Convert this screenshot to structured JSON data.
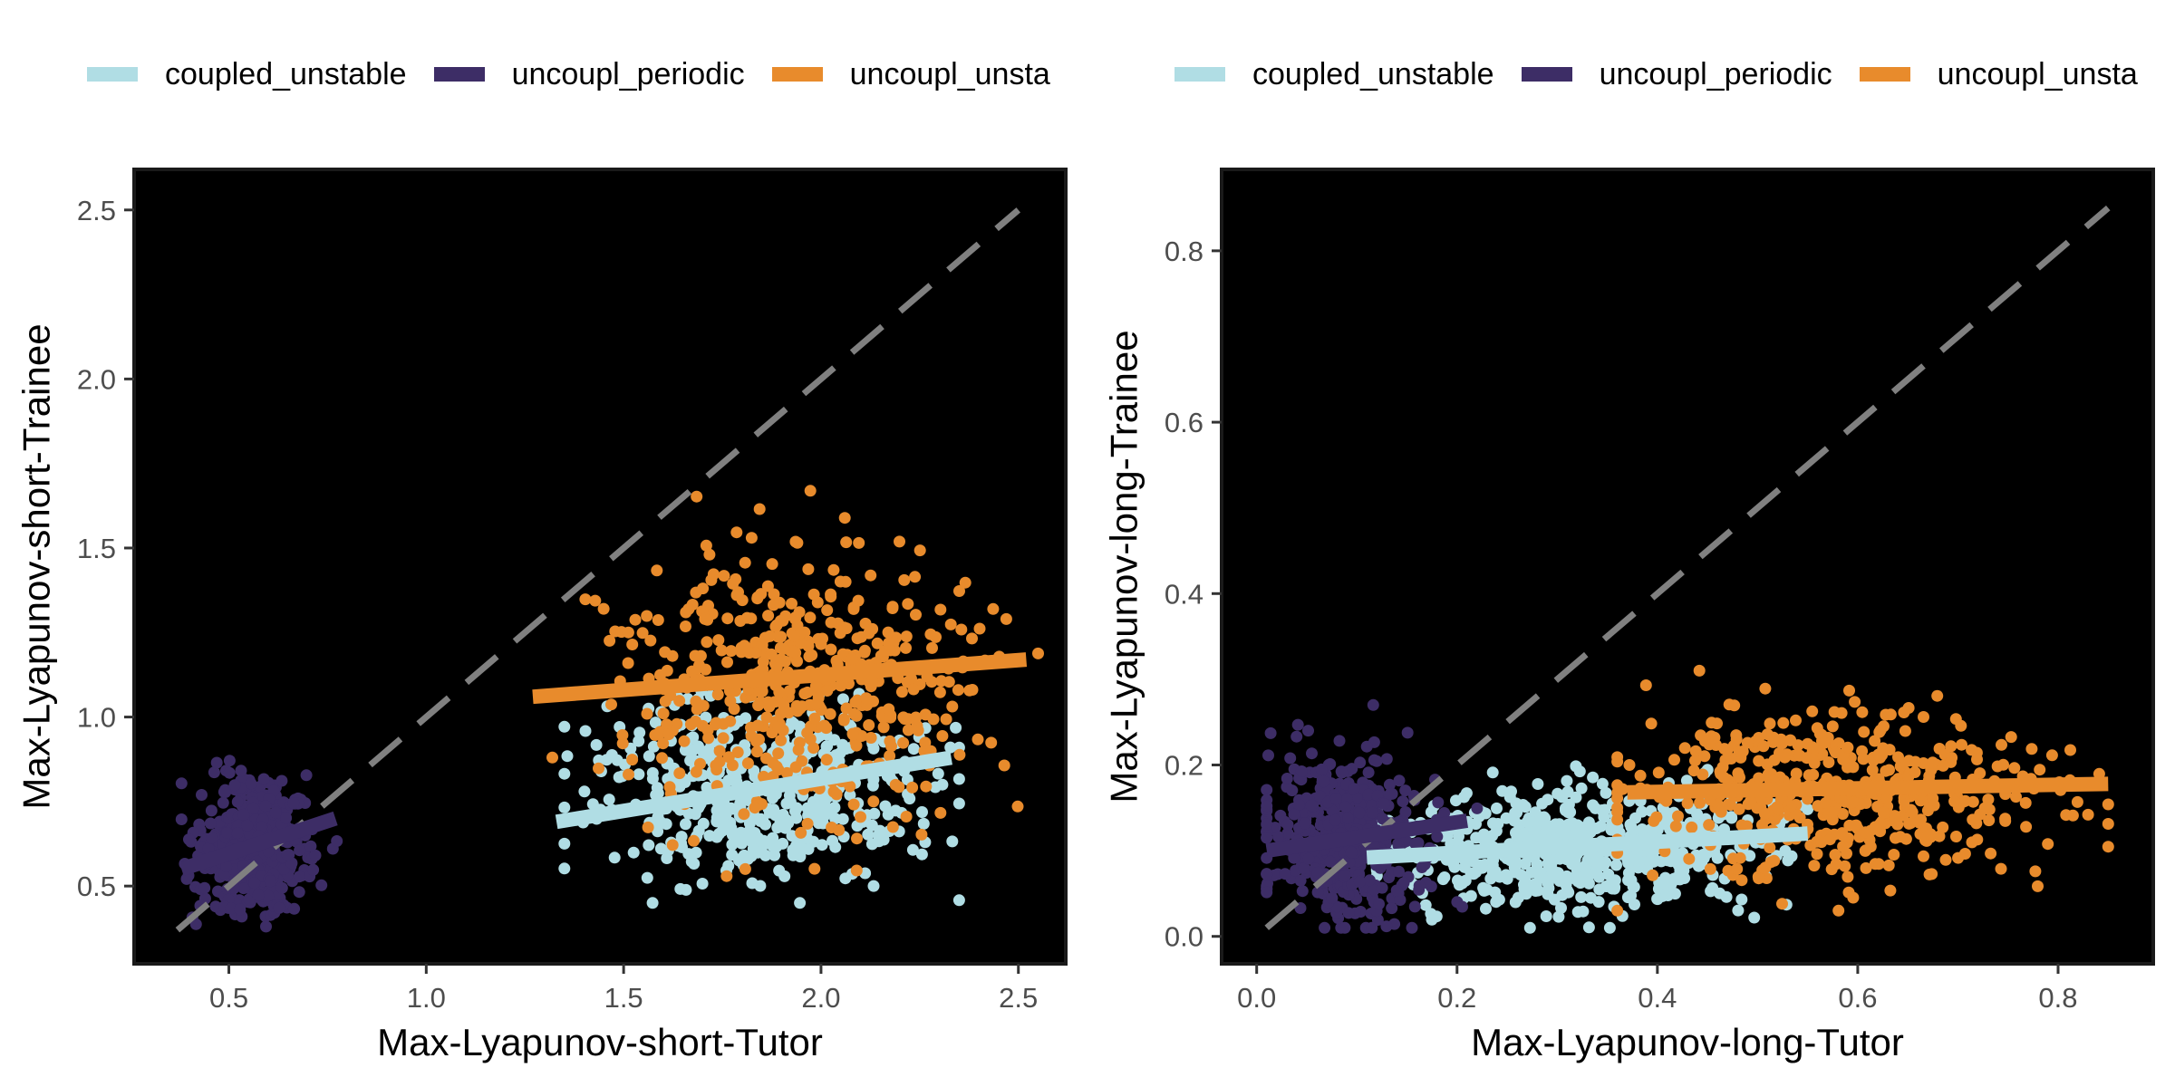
{
  "chart_data": [
    {
      "type": "scatter",
      "xlabel": "Max-Lyapunov-short-Tutor",
      "ylabel": "Max-Lyapunov-short-Trainee",
      "xlim": [
        0.26,
        2.62
      ],
      "ylim": [
        0.27,
        2.62
      ],
      "x_ticks": [
        "0.5",
        "1.0",
        "1.5",
        "2.0",
        "2.5"
      ],
      "y_ticks": [
        "0.5",
        "1.0",
        "1.5",
        "2.0",
        "2.5"
      ],
      "legend": {
        "position": "top",
        "entries": [
          "coupled_unstable",
          "uncoupl_periodic",
          "uncoupl_unsta"
        ]
      },
      "background": "#000000",
      "grid": false,
      "identity_line": {
        "from": [
          0.37,
          0.37
        ],
        "to": [
          2.5,
          2.5
        ],
        "style": "dashed",
        "color": "#808080"
      },
      "series": [
        {
          "name": "coupled_unstable",
          "color": "#b0dde4",
          "n": 500,
          "x_range": [
            1.35,
            2.35
          ],
          "y_range": [
            0.45,
            1.25
          ],
          "center": [
            1.85,
            0.78
          ],
          "spread": [
            0.22,
            0.13
          ],
          "fit_line": {
            "x": [
              1.33,
              2.33
            ],
            "y": [
              0.69,
              0.88
            ]
          }
        },
        {
          "name": "uncoupl_periodic",
          "color": "#3d2d66",
          "n": 500,
          "x_range": [
            0.38,
            0.8
          ],
          "y_range": [
            0.38,
            0.9
          ],
          "center": [
            0.55,
            0.62
          ],
          "spread": [
            0.07,
            0.1
          ],
          "fit_line": {
            "x": [
              0.38,
              0.77
            ],
            "y": [
              0.55,
              0.7
            ]
          }
        },
        {
          "name": "uncoupl_unsta",
          "color": "#e88b2c",
          "n": 500,
          "x_range": [
            1.25,
            2.55
          ],
          "y_range": [
            0.5,
            1.7
          ],
          "center": [
            1.95,
            1.1
          ],
          "spread": [
            0.24,
            0.2
          ],
          "fit_line": {
            "x": [
              1.27,
              2.52
            ],
            "y": [
              1.06,
              1.17
            ]
          }
        }
      ]
    },
    {
      "type": "scatter",
      "xlabel": "Max-Lyapunov-long-Tutor",
      "ylabel": "Max-Lyapunov-long-Trainee",
      "xlim": [
        -0.035,
        0.895
      ],
      "ylim": [
        -0.032,
        0.895
      ],
      "x_ticks": [
        "0.0",
        "0.2",
        "0.4",
        "0.6",
        "0.8"
      ],
      "y_ticks": [
        "0.0",
        "0.2",
        "0.4",
        "0.6",
        "0.8"
      ],
      "legend": {
        "position": "top",
        "entries": [
          "coupled_unstable",
          "uncoupl_periodic",
          "uncoupl_unsta"
        ]
      },
      "background": "#000000",
      "grid": false,
      "identity_line": {
        "from": [
          0.01,
          0.01
        ],
        "to": [
          0.85,
          0.85
        ],
        "style": "dashed",
        "color": "#808080"
      },
      "series": [
        {
          "name": "coupled_unstable",
          "color": "#b0dde4",
          "n": 600,
          "x_range": [
            0.12,
            0.55
          ],
          "y_range": [
            0.01,
            0.24
          ],
          "center": [
            0.32,
            0.1
          ],
          "spread": [
            0.09,
            0.035
          ],
          "fit_line": {
            "x": [
              0.11,
              0.55
            ],
            "y": [
              0.092,
              0.12
            ]
          }
        },
        {
          "name": "uncoupl_periodic",
          "color": "#3d2d66",
          "n": 500,
          "x_range": [
            0.01,
            0.22
          ],
          "y_range": [
            0.01,
            0.27
          ],
          "center": [
            0.09,
            0.12
          ],
          "spread": [
            0.04,
            0.045
          ],
          "fit_line": {
            "x": [
              0.01,
              0.21
            ],
            "y": [
              0.1,
              0.135
            ]
          }
        },
        {
          "name": "uncoupl_unsta",
          "color": "#e88b2c",
          "n": 500,
          "x_range": [
            0.36,
            0.85
          ],
          "y_range": [
            0.03,
            0.31
          ],
          "center": [
            0.59,
            0.17
          ],
          "spread": [
            0.1,
            0.05
          ],
          "fit_line": {
            "x": [
              0.37,
              0.85
            ],
            "y": [
              0.168,
              0.178
            ]
          }
        }
      ]
    }
  ]
}
